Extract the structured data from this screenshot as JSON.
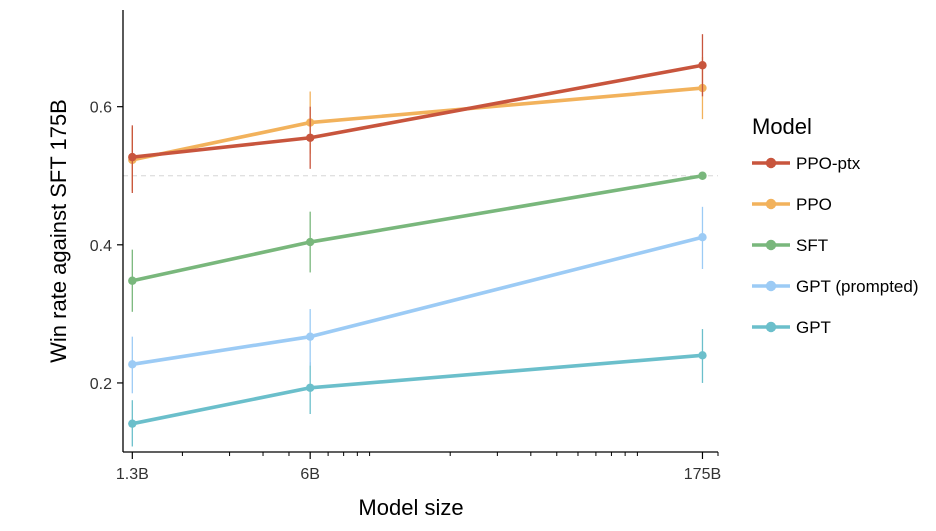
{
  "chart_data": {
    "type": "line",
    "title": "",
    "xlabel": "Model size",
    "ylabel": "Win rate against SFT 175B",
    "x_scale": "log",
    "x_values_billion": [
      1.3,
      6,
      175
    ],
    "x_tick_labels": [
      "1.3B",
      "6B",
      "175B"
    ],
    "xlim_billion": [
      1.2,
      200
    ],
    "ylim": [
      0.1,
      0.74
    ],
    "y_ticks": [
      0.2,
      0.4,
      0.6
    ],
    "y_tick_labels": [
      "0.2",
      "0.4",
      "0.6"
    ],
    "reference_line": 0.5,
    "legend_title": "Model",
    "legend_position": "right",
    "series": [
      {
        "name": "PPO-ptx",
        "color": "#c8553d",
        "values": [
          0.527,
          0.555,
          0.66
        ],
        "err_low": [
          0.475,
          0.51,
          0.615
        ],
        "err_high": [
          0.573,
          0.6,
          0.705
        ]
      },
      {
        "name": "PPO",
        "color": "#f2b25c",
        "values": [
          0.523,
          0.577,
          0.627
        ],
        "err_low": [
          0.478,
          0.532,
          0.582
        ],
        "err_high": [
          0.57,
          0.622,
          0.672
        ]
      },
      {
        "name": "SFT",
        "color": "#79b77c",
        "values": [
          0.348,
          0.404,
          0.5
        ],
        "err_low": [
          0.303,
          0.36,
          0.5
        ],
        "err_high": [
          0.393,
          0.448,
          0.5
        ]
      },
      {
        "name": "GPT (prompted)",
        "color": "#9ccbf5",
        "values": [
          0.227,
          0.267,
          0.411
        ],
        "err_low": [
          0.185,
          0.225,
          0.365
        ],
        "err_high": [
          0.267,
          0.307,
          0.455
        ]
      },
      {
        "name": "GPT",
        "color": "#6bbfcb",
        "values": [
          0.141,
          0.193,
          0.24
        ],
        "err_low": [
          0.108,
          0.155,
          0.2
        ],
        "err_high": [
          0.175,
          0.23,
          0.278
        ]
      }
    ]
  }
}
